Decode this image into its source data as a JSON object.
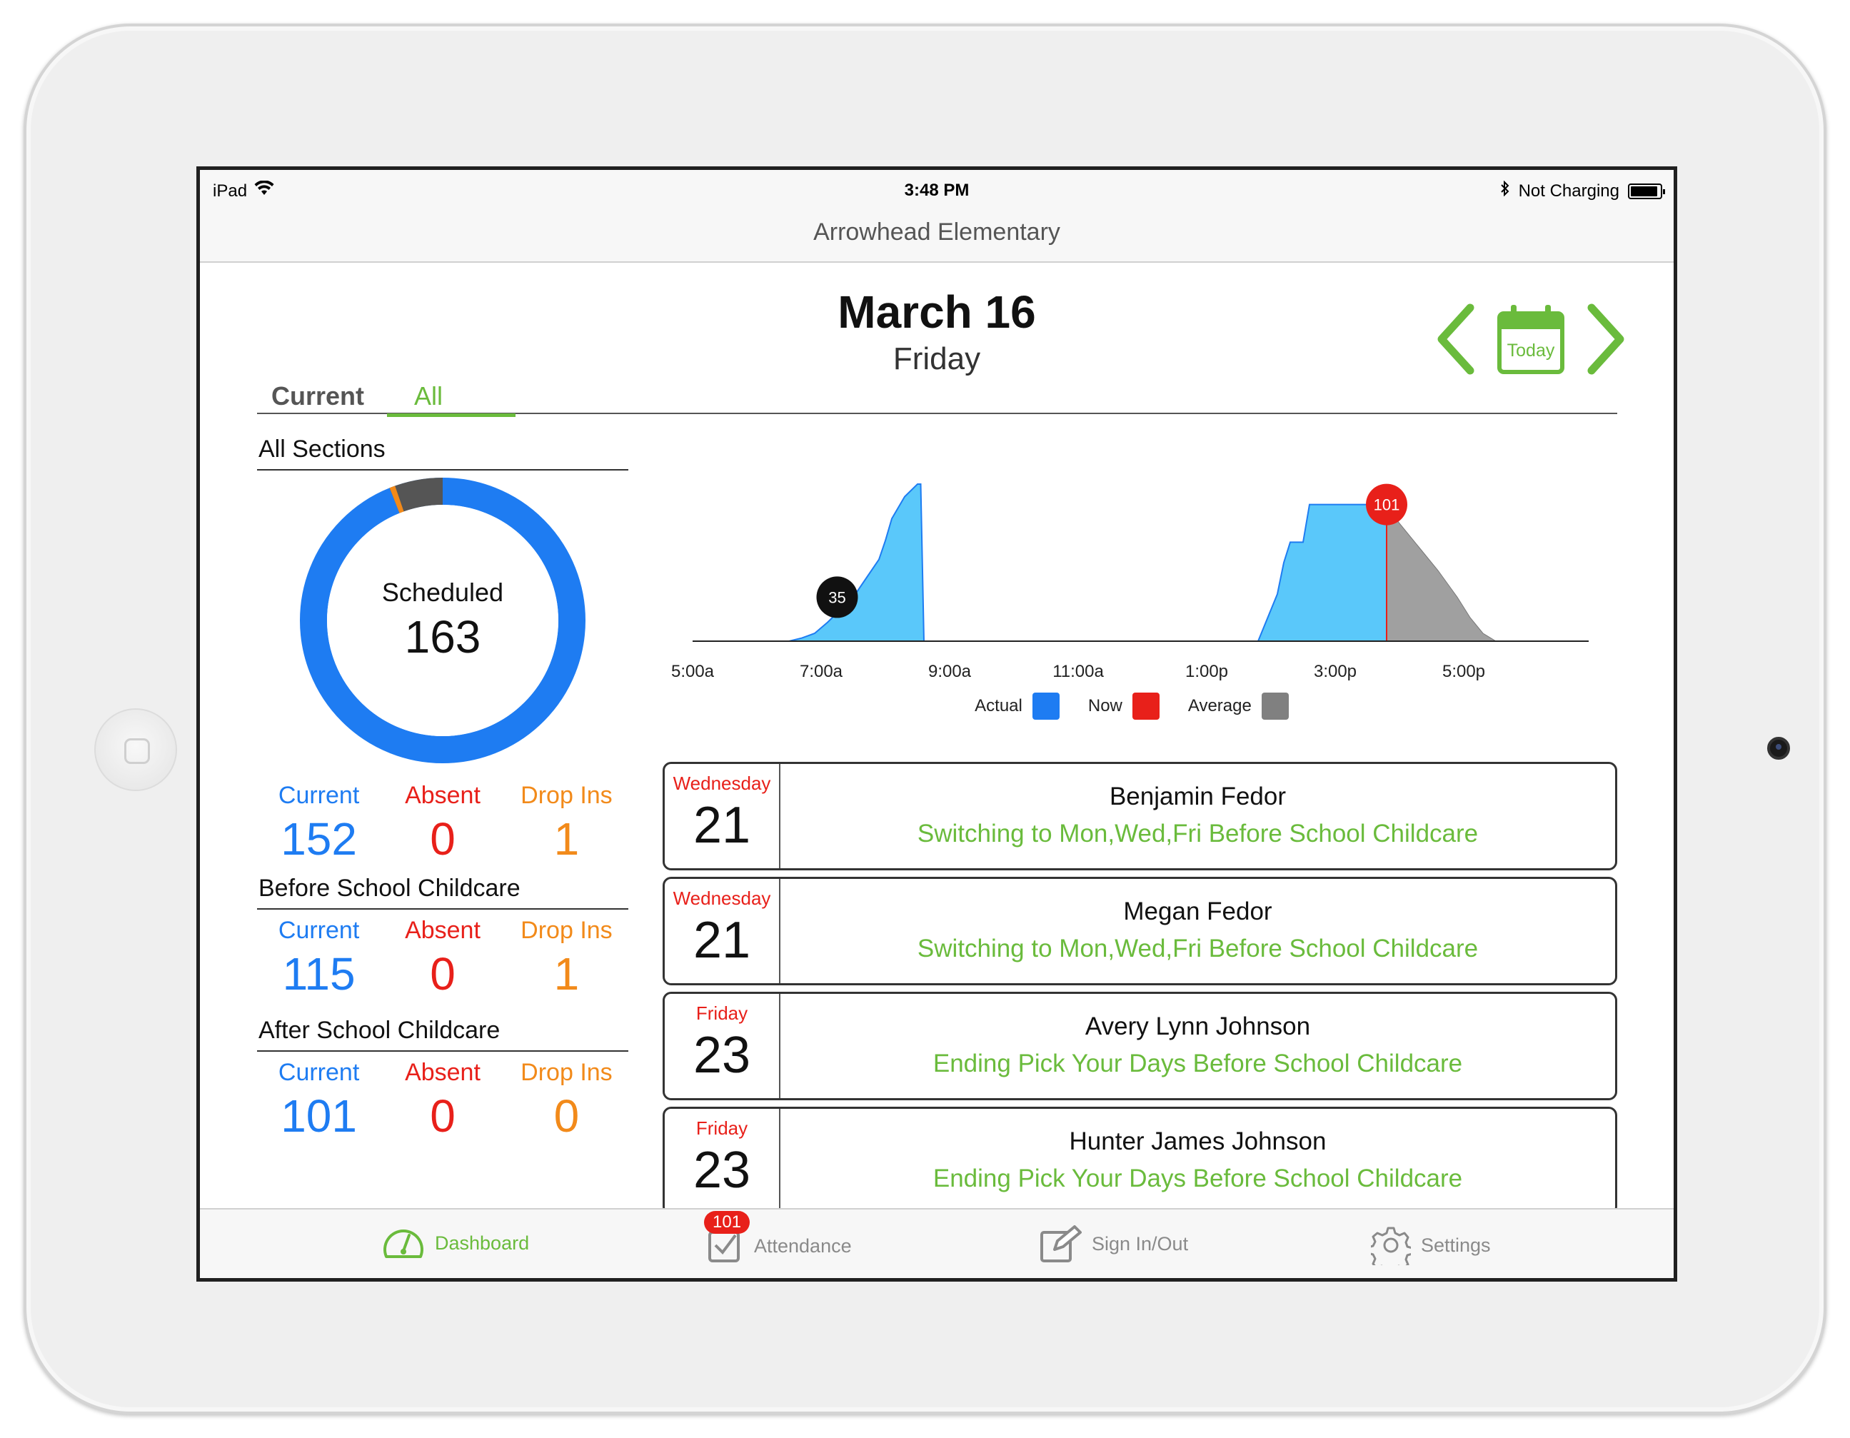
{
  "status_bar": {
    "device": "iPad",
    "time": "3:48 PM",
    "charging": "Not Charging"
  },
  "nav": {
    "title": "Arrowhead Elementary"
  },
  "date": {
    "month_day": "March  16",
    "weekday": "Friday"
  },
  "date_nav": {
    "today_label": "Today"
  },
  "tabs": [
    {
      "label": "Current"
    },
    {
      "label": "All"
    }
  ],
  "summary": {
    "all_sections": {
      "title": "All Sections",
      "donut_label": "Scheduled",
      "donut_value": "163",
      "current_label": "Current",
      "current": "152",
      "absent_label": "Absent",
      "absent": "0",
      "dropins_label": "Drop Ins",
      "dropins": "1"
    },
    "before_school": {
      "title": "Before School Childcare",
      "current_label": "Current",
      "current": "115",
      "absent_label": "Absent",
      "absent": "0",
      "dropins_label": "Drop Ins",
      "dropins": "1"
    },
    "after_school": {
      "title": "After School Childcare",
      "current_label": "Current",
      "current": "101",
      "absent_label": "Absent",
      "absent": "0",
      "dropins_label": "Drop Ins",
      "dropins": "0"
    }
  },
  "colors": {
    "accent_green": "#6abb3c",
    "blue": "#1e7cf2",
    "red": "#e8201a",
    "orange": "#f28a1a",
    "chart_fill": "#5ac8fa",
    "average_fill": "#a0a0a0"
  },
  "chart_data": {
    "type": "area",
    "x_ticks": [
      "5:00a",
      "7:00a",
      "9:00a",
      "11:00a",
      "1:00p",
      "3:00p",
      "5:00p"
    ],
    "actual_morning": {
      "x_hours": [
        6.5,
        6.7,
        6.9,
        7.1,
        7.3,
        7.5,
        7.7,
        7.9,
        8.0,
        8.1,
        8.3,
        8.5,
        8.55,
        8.6
      ],
      "y": [
        0,
        2,
        5,
        12,
        20,
        28,
        40,
        52,
        64,
        78,
        92,
        100,
        100,
        0
      ]
    },
    "actual_afternoon": {
      "x_hours": [
        13.8,
        13.9,
        14.1,
        14.2,
        14.3,
        14.5,
        14.6,
        15.0,
        15.5,
        15.8
      ],
      "y": [
        0,
        10,
        30,
        50,
        63,
        63,
        87,
        87,
        87,
        87
      ]
    },
    "average": {
      "x_hours": [
        15.8,
        16.0,
        16.3,
        16.6,
        16.9,
        17.1,
        17.3,
        17.5
      ],
      "y": [
        87,
        75,
        60,
        45,
        28,
        15,
        5,
        0
      ]
    },
    "now_hour": 15.8,
    "markers": [
      {
        "label": "35",
        "x_hour": 7.25,
        "y": 28
      },
      {
        "label": "101",
        "x_hour": 15.8,
        "y": 87
      }
    ],
    "ylim": [
      0,
      100
    ],
    "xlim": [
      5,
      19
    ],
    "legend": [
      {
        "name": "Actual",
        "color": "#1e7cf2"
      },
      {
        "name": "Now",
        "color": "#e8201a"
      },
      {
        "name": "Average",
        "color": "#808080"
      }
    ]
  },
  "changes": [
    {
      "weekday": "Wednesday",
      "day": "21",
      "name": "Benjamin Fedor",
      "change": "Switching to Mon,Wed,Fri Before School Childcare"
    },
    {
      "weekday": "Wednesday",
      "day": "21",
      "name": "Megan Fedor",
      "change": "Switching to Mon,Wed,Fri Before School Childcare"
    },
    {
      "weekday": "Friday",
      "day": "23",
      "name": "Avery Lynn Johnson",
      "change": "Ending Pick Your Days Before School Childcare"
    },
    {
      "weekday": "Friday",
      "day": "23",
      "name": "Hunter James Johnson",
      "change": "Ending Pick Your Days Before School Childcare"
    }
  ],
  "tabbar": {
    "dashboard": "Dashboard",
    "attendance": "Attendance",
    "attendance_badge": "101",
    "signinout": "Sign In/Out",
    "settings": "Settings"
  }
}
